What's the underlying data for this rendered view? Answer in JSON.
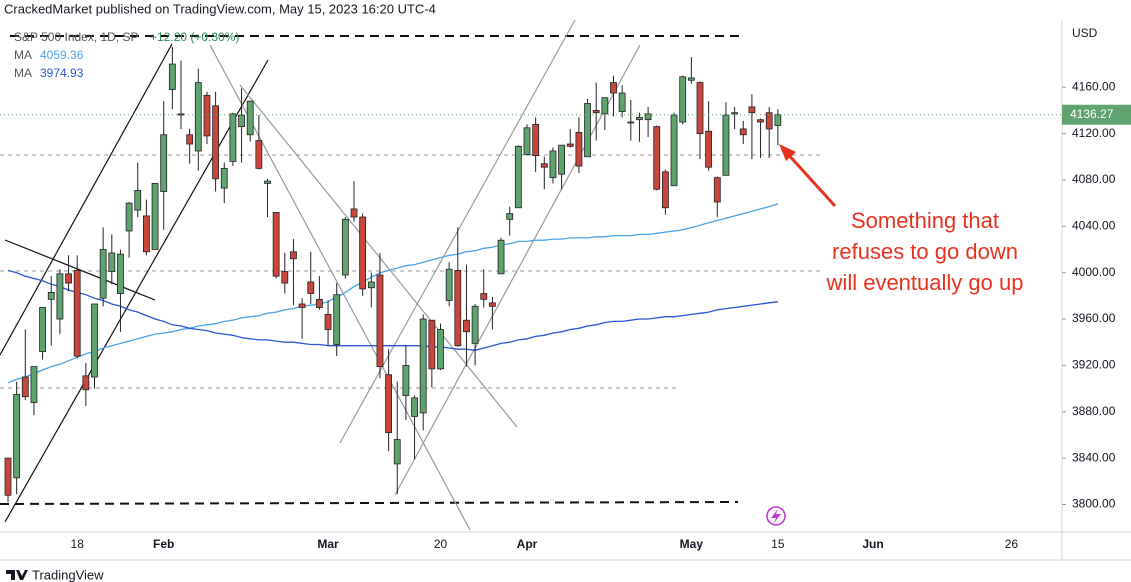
{
  "chart_data": {
    "type": "candlestick",
    "header": "CrackedMarket published on TradingView.com, May 15, 2023 16:20 UTC-4",
    "title": "S&P 500 Index, 1D, SP",
    "change": "+12.20 (+0.30%)",
    "currency": "USD",
    "annotation": [
      "Something that",
      "refuses to go down",
      "will eventually go up"
    ],
    "brand": "TradingView",
    "up_color": "#5fa36e",
    "down_color": "#c9463d",
    "categories": [
      null,
      null,
      null,
      null,
      null,
      null,
      null,
      null,
      "18",
      null,
      null,
      null,
      null,
      null,
      null,
      null,
      null,
      null,
      "Feb",
      null,
      null,
      null,
      null,
      null,
      null,
      null,
      null,
      null,
      null,
      null,
      null,
      null,
      null,
      null,
      null,
      null,
      null,
      "Mar",
      null,
      null,
      null,
      null,
      null,
      null,
      null,
      null,
      null,
      null,
      null,
      null,
      "20",
      null,
      null,
      null,
      null,
      null,
      null,
      null,
      null,
      null,
      "Apr",
      null,
      null,
      null,
      null,
      null,
      null,
      null,
      null,
      null,
      null,
      null,
      null,
      null,
      null,
      null,
      null,
      null,
      null,
      "May",
      null,
      null,
      null,
      null,
      null,
      null,
      null,
      null,
      null,
      "15",
      null,
      null,
      null,
      null,
      null,
      null,
      null,
      null,
      null,
      null,
      "Jun",
      null,
      null,
      null,
      null,
      null,
      null,
      null,
      null,
      null,
      null,
      null,
      null,
      null,
      null,
      null,
      "26",
      null,
      null,
      null,
      null
    ],
    "open": [
      3840,
      3823,
      3910,
      3888,
      3932,
      3977,
      3960,
      3999,
      4002,
      3911,
      3910,
      3978,
      4001,
      3982,
      4036,
      4054,
      4049,
      4020,
      4070,
      4158,
      4137,
      4119,
      4105,
      4153,
      4144,
      4073,
      4096,
      4126,
      4119,
      4114,
      4077,
      4052,
      4001,
      4018,
      3973,
      3992,
      3977,
      3964,
      3938,
      3998,
      4055,
      4048,
      3987,
      3998,
      3912,
      3835,
      3894,
      3876,
      3879,
      3959,
      3917,
      3976,
      4002,
      3959,
      3939,
      3982,
      3974,
      3999,
      4046,
      4056,
      4102,
      4128,
      4094,
      4082,
      4085,
      4111,
      4121,
      4100,
      4140,
      4137,
      4164,
      4139,
      4130,
      4132,
      4132,
      4126,
      4087,
      4075,
      4130,
      4166,
      4164,
      4122,
      4082,
      4084,
      4137,
      4124,
      4143,
      4132,
      4138,
      4127,
      null,
      null,
      null,
      null,
      null,
      null,
      null,
      null,
      null,
      null,
      null,
      null,
      null,
      null,
      null,
      null,
      null,
      null,
      null,
      null,
      null,
      null,
      null,
      null,
      null,
      null,
      null,
      null,
      null,
      null,
      null
    ],
    "high": [
      3840,
      3906,
      3951,
      3919,
      3970,
      3997,
      4003,
      4015,
      4015,
      3922,
      3973,
      4039,
      4033,
      4020,
      4061,
      4095,
      4063,
      4077,
      4148,
      4195,
      4183,
      4124,
      4176,
      4156,
      4156,
      4095,
      4138,
      4159,
      4148,
      4136,
      4081,
      4052,
      4017,
      4029,
      3978,
      4018,
      3997,
      3976,
      3991,
      4048,
      4079,
      4051,
      4000,
      4017,
      3934,
      3906,
      3937,
      3894,
      3964,
      3959,
      3956,
      4009,
      4039,
      4007,
      3973,
      4003,
      3979,
      4030,
      4057,
      4110,
      4128,
      4134,
      4100,
      4108,
      4110,
      4124,
      4134,
      4150,
      4164,
      4151,
      4170,
      4162,
      4149,
      4138,
      4143,
      4127,
      4089,
      4138,
      4170,
      4186,
      4165,
      4148,
      4083,
      4147,
      4143,
      4131,
      4154,
      4133,
      4143,
      4141,
      null,
      null,
      null,
      null,
      null,
      null,
      null,
      null,
      null,
      null,
      null,
      null,
      null,
      null,
      null,
      null,
      null,
      null,
      null,
      null,
      null,
      null,
      null,
      null,
      null,
      null,
      null,
      null,
      null,
      null,
      null
    ],
    "low": [
      3802,
      3809,
      3890,
      3877,
      3925,
      3937,
      3947,
      3984,
      3926,
      3885,
      3900,
      3971,
      3990,
      3949,
      4013,
      4048,
      4015,
      4020,
      4037,
      4141,
      4124,
      4094,
      4088,
      4111,
      4070,
      4060,
      4092,
      4095,
      4113,
      4089,
      4048,
      3995,
      3982,
      3972,
      3943,
      3973,
      3968,
      3937,
      3928,
      3995,
      4044,
      3980,
      3970,
      3909,
      3846,
      3809,
      3873,
      3839,
      3864,
      3901,
      3916,
      3971,
      3936,
      3919,
      3920,
      3970,
      3951,
      3999,
      4032,
      4056,
      4101,
      4087,
      4072,
      4077,
      4072,
      4108,
      4086,
      4100,
      4114,
      4123,
      4135,
      4134,
      4114,
      4113,
      4117,
      4071,
      4050,
      4075,
      4128,
      4163,
      4098,
      4088,
      4048,
      4084,
      4124,
      4111,
      4098,
      4099,
      4099,
      4110,
      null,
      null,
      null,
      null,
      null,
      null,
      null,
      null,
      null,
      null,
      null,
      null,
      null,
      null,
      null,
      null,
      null,
      null,
      null,
      null,
      null,
      null,
      null,
      null,
      null,
      null,
      null,
      null,
      null,
      null,
      null
    ],
    "close": [
      3808,
      3895,
      3893,
      3919,
      3970,
      3983,
      3999,
      3991,
      3928,
      3899,
      3973,
      4020,
      4017,
      4016,
      4060,
      4071,
      4018,
      4077,
      4119,
      4180,
      4136,
      4111,
      4164,
      4118,
      4081,
      4090,
      4137,
      4136,
      4148,
      4090,
      4079,
      3997,
      3991,
      4012,
      3970,
      3982,
      3970,
      3951,
      3981,
      4046,
      4048,
      3986,
      3992,
      3919,
      3862,
      3856,
      3920,
      3892,
      3960,
      3917,
      3951,
      4003,
      3937,
      3949,
      3971,
      3977,
      3971,
      4028,
      4051,
      4109,
      4125,
      4101,
      4091,
      4105,
      4110,
      4109,
      4092,
      4146,
      4138,
      4151,
      4155,
      4155,
      4130,
      4134,
      4137,
      4072,
      4056,
      4136,
      4169,
      4168,
      4120,
      4091,
      4061,
      4136,
      4138,
      4119,
      4138,
      4130,
      4124,
      4136.27,
      null,
      null,
      null,
      null,
      null,
      null,
      null,
      null,
      null,
      null,
      null,
      null,
      null,
      null,
      null,
      null,
      null,
      null,
      null,
      null,
      null,
      null,
      null,
      null,
      null,
      null,
      null,
      null,
      null,
      null,
      null
    ],
    "series": [
      {
        "name": "MA",
        "color": "#4aa3e8",
        "values": [
          3905,
          3908,
          3910,
          3913,
          3916,
          3919,
          3921,
          3924,
          3927,
          3930,
          3932,
          3935,
          3937,
          3939,
          3941,
          3943,
          3945,
          3947,
          3948,
          3949,
          3951,
          3952,
          3954,
          3955,
          3956,
          3958,
          3959,
          3961,
          3962,
          3963,
          3965,
          3966,
          3968,
          3969,
          3971,
          3972,
          3973,
          3975,
          3979,
          3983,
          3988,
          3992,
          3996,
          4000,
          4002,
          4004,
          4006,
          4007,
          4009,
          4011,
          4013,
          4015,
          4016,
          4018,
          4019,
          4021,
          4022,
          4024,
          4025,
          4027,
          4027,
          4028,
          4028,
          4029,
          4029,
          4030,
          4030,
          4030,
          4031,
          4031,
          4032,
          4032,
          4032,
          4033,
          4033,
          4034,
          4035,
          4036,
          4037,
          4039,
          4041,
          4043,
          4045,
          4047,
          4049,
          4051,
          4053,
          4055,
          4057,
          4059.36,
          null,
          null,
          null,
          null,
          null,
          null,
          null,
          null,
          null,
          null,
          null,
          null,
          null,
          null,
          null,
          null,
          null,
          null,
          null,
          null,
          null,
          null,
          null,
          null,
          null,
          null,
          null,
          null,
          null,
          null,
          null
        ]
      },
      {
        "name": "MA",
        "color": "#2b56d4",
        "values": [
          4002,
          4000,
          3997,
          3995,
          3993,
          3990,
          3988,
          3985,
          3983,
          3981,
          3978,
          3976,
          3973,
          3971,
          3968,
          3966,
          3963,
          3960,
          3958,
          3955,
          3954,
          3952,
          3951,
          3950,
          3948,
          3947,
          3946,
          3944,
          3943,
          3942,
          3942,
          3941,
          3940,
          3940,
          3939,
          3938,
          3938,
          3937,
          3937,
          3937,
          3937,
          3937,
          3937,
          3937,
          3937,
          3937,
          3937,
          3937,
          3937,
          3936,
          3936,
          3935,
          3934,
          3934,
          3933,
          3935,
          3937,
          3939,
          3940,
          3942,
          3943,
          3945,
          3946,
          3948,
          3949,
          3951,
          3952,
          3954,
          3955,
          3957,
          3958,
          3958,
          3959,
          3960,
          3960,
          3961,
          3962,
          3962,
          3963,
          3964,
          3965,
          3966,
          3968,
          3969,
          3970,
          3971,
          3972,
          3973,
          3974,
          3974.93,
          null,
          null,
          null,
          null,
          null,
          null,
          null,
          null,
          null,
          null,
          null,
          null,
          null,
          null,
          null,
          null,
          null,
          null,
          null,
          null,
          null,
          null,
          null,
          null,
          null,
          null,
          null,
          null,
          null,
          null,
          null
        ]
      }
    ],
    "ylim": [
      3778,
      4218
    ],
    "yticks": [
      {
        "value": 3800,
        "label": "3800.00"
      },
      {
        "value": 3840,
        "label": "3840.00"
      },
      {
        "value": 3880,
        "label": "3880.00"
      },
      {
        "value": 3920,
        "label": "3920.00"
      },
      {
        "value": 3960,
        "label": "3960.00"
      },
      {
        "value": 4000,
        "label": "4000.00"
      },
      {
        "value": 4040,
        "label": "4040.00"
      },
      {
        "value": 4080,
        "label": "4080.00"
      },
      {
        "value": 4120,
        "label": "4120.00"
      },
      {
        "value": 4160,
        "label": "4160.00"
      }
    ],
    "grid": false
  }
}
